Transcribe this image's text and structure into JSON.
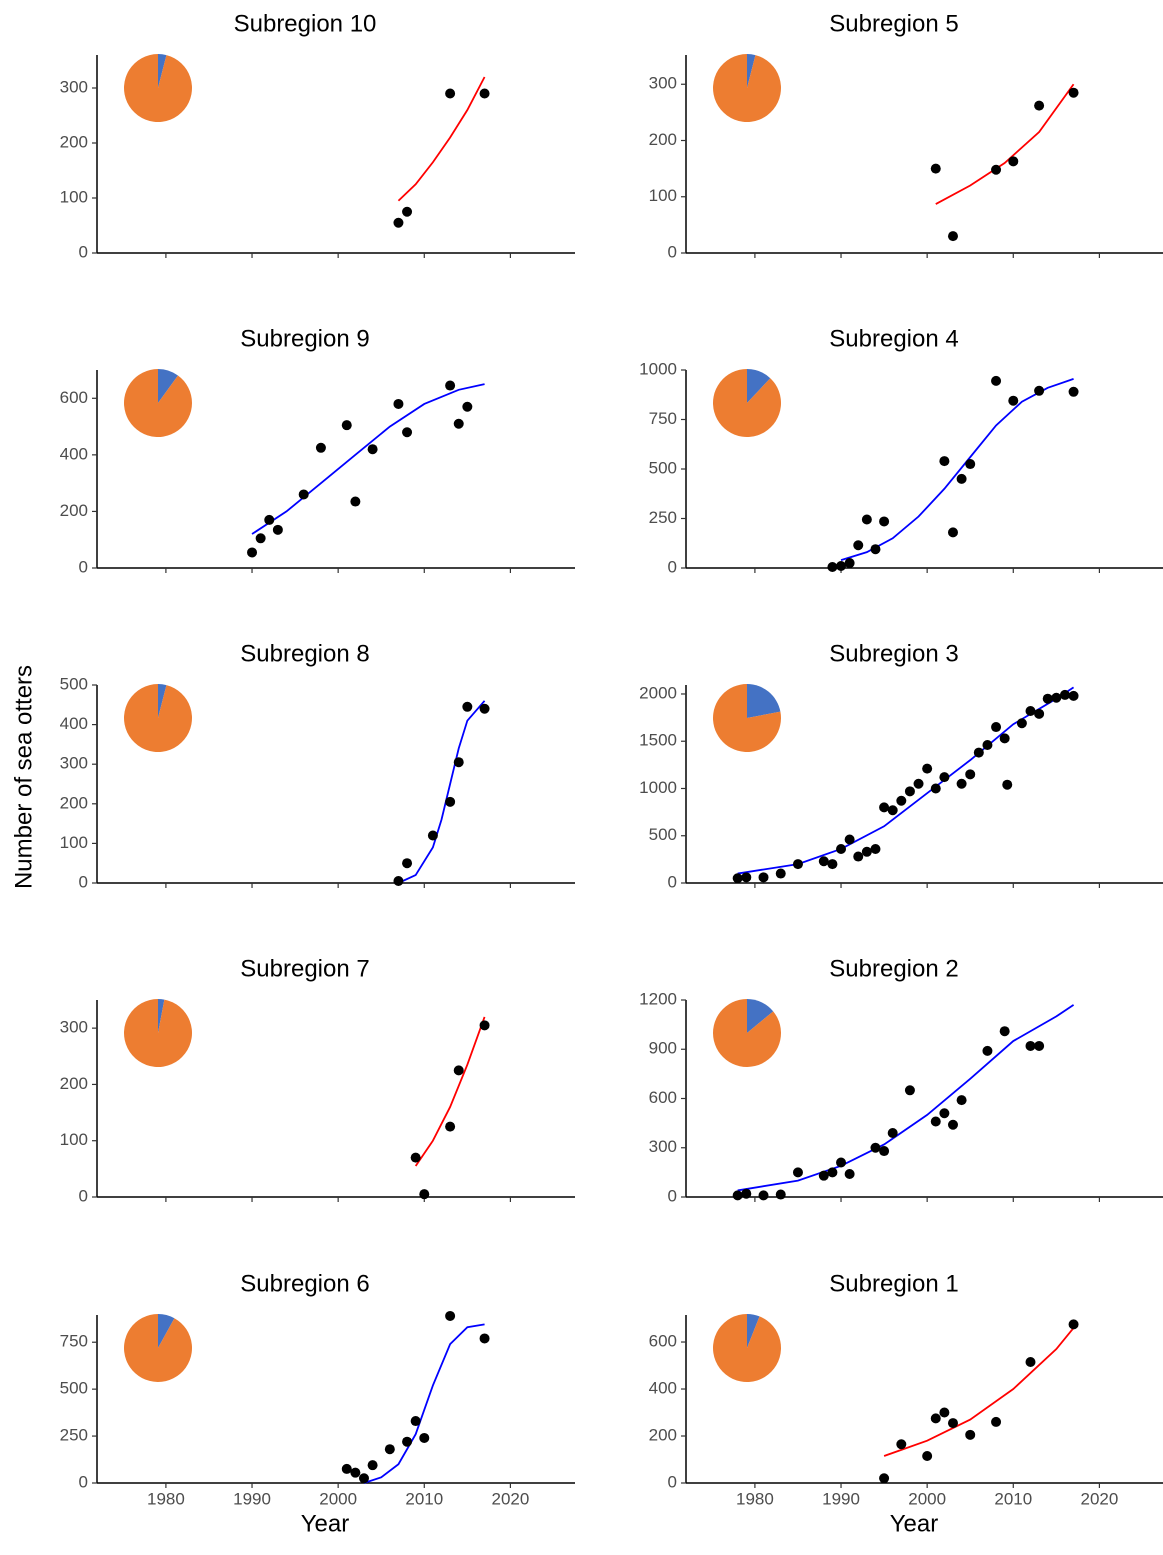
{
  "y_label": "Number of sea otters",
  "chart_data": [
    {
      "type": "scatter",
      "title": "Subregion 10",
      "color": "#000000",
      "x": [
        2007,
        2008,
        2013,
        2017
      ],
      "values": [
        55,
        75,
        290,
        290
      ],
      "fit": {
        "color": "#ff0000",
        "x": [
          2007,
          2009,
          2011,
          2013,
          2015,
          2017
        ],
        "values": [
          95,
          125,
          165,
          210,
          260,
          320
        ]
      },
      "pie": {
        "values": [
          4,
          96
        ],
        "colors": [
          "#4472c4",
          "#ed7d31"
        ]
      },
      "xlim": [
        1972,
        2027.5
      ],
      "xticks": [
        1980,
        1990,
        2000,
        2010,
        2020
      ],
      "xtick_labels": false,
      "ylim": [
        0,
        360
      ],
      "yticks": [
        0,
        100,
        200,
        300
      ]
    },
    {
      "type": "scatter",
      "title": "Subregion 9",
      "color": "#000000",
      "x": [
        1990,
        1991,
        1992,
        1993,
        1996,
        1998,
        2001,
        2002,
        2004,
        2007,
        2008,
        2013,
        2014,
        2015
      ],
      "values": [
        55,
        105,
        170,
        135,
        260,
        425,
        505,
        235,
        420,
        580,
        480,
        645,
        510,
        570
      ],
      "fit": {
        "color": "#0000ff",
        "x": [
          1990,
          1994,
          1998,
          2002,
          2006,
          2010,
          2014,
          2017
        ],
        "values": [
          120,
          200,
          300,
          400,
          500,
          580,
          630,
          650
        ]
      },
      "pie": {
        "values": [
          10,
          90
        ],
        "colors": [
          "#4472c4",
          "#ed7d31"
        ]
      },
      "xlim": [
        1972,
        2027.5
      ],
      "xticks": [
        1980,
        1990,
        2000,
        2010,
        2020
      ],
      "xtick_labels": false,
      "ylim": [
        0,
        700
      ],
      "yticks": [
        0,
        200,
        400,
        600
      ]
    },
    {
      "type": "scatter",
      "title": "Subregion 8",
      "color": "#000000",
      "x": [
        2007,
        2008,
        2011,
        2013,
        2014,
        2015,
        2017
      ],
      "values": [
        5,
        50,
        120,
        205,
        305,
        445,
        440
      ],
      "fit": {
        "color": "#0000ff",
        "x": [
          2007,
          2009,
          2011,
          2012,
          2013,
          2014,
          2015,
          2017
        ],
        "values": [
          0,
          20,
          90,
          160,
          250,
          340,
          410,
          460
        ]
      },
      "pie": {
        "values": [
          4,
          96
        ],
        "colors": [
          "#4472c4",
          "#ed7d31"
        ]
      },
      "xlim": [
        1972,
        2027.5
      ],
      "xticks": [
        1980,
        1990,
        2000,
        2010,
        2020
      ],
      "xtick_labels": false,
      "ylim": [
        0,
        500
      ],
      "yticks": [
        0,
        100,
        200,
        300,
        400,
        500
      ]
    },
    {
      "type": "scatter",
      "title": "Subregion 7",
      "color": "#000000",
      "x": [
        2009,
        2010,
        2013,
        2014,
        2017
      ],
      "values": [
        70,
        5,
        125,
        225,
        305
      ],
      "fit": {
        "color": "#ff0000",
        "x": [
          2009,
          2011,
          2013,
          2015,
          2017
        ],
        "values": [
          55,
          100,
          160,
          235,
          320
        ]
      },
      "pie": {
        "values": [
          3,
          97
        ],
        "colors": [
          "#4472c4",
          "#ed7d31"
        ]
      },
      "xlim": [
        1972,
        2027.5
      ],
      "xticks": [
        1980,
        1990,
        2000,
        2010,
        2020
      ],
      "xtick_labels": false,
      "ylim": [
        0,
        350
      ],
      "yticks": [
        0,
        100,
        200,
        300
      ]
    },
    {
      "type": "scatter",
      "title": "Subregion 6",
      "color": "#000000",
      "xlabel": "Year",
      "x": [
        2001,
        2002,
        2003,
        2004,
        2006,
        2008,
        2009,
        2010,
        2013,
        2017
      ],
      "values": [
        75,
        55,
        25,
        95,
        180,
        220,
        330,
        240,
        890,
        770
      ],
      "fit": {
        "color": "#0000ff",
        "x": [
          2003,
          2005,
          2007,
          2009,
          2011,
          2013,
          2015,
          2017
        ],
        "values": [
          0,
          30,
          100,
          260,
          520,
          740,
          830,
          845
        ]
      },
      "pie": {
        "values": [
          8,
          92
        ],
        "colors": [
          "#4472c4",
          "#ed7d31"
        ]
      },
      "xlim": [
        1972,
        2027.5
      ],
      "xticks": [
        1980,
        1990,
        2000,
        2010,
        2020
      ],
      "xtick_labels": true,
      "ylim": [
        0,
        895
      ],
      "yticks": [
        0,
        250,
        500,
        750
      ]
    },
    {
      "type": "scatter",
      "title": "Subregion 5",
      "color": "#000000",
      "x": [
        2001,
        2003,
        2008,
        2010,
        2013,
        2017
      ],
      "values": [
        150,
        30,
        148,
        163,
        262,
        285
      ],
      "fit": {
        "color": "#ff0000",
        "x": [
          2001,
          2005,
          2009,
          2013,
          2017
        ],
        "values": [
          87,
          120,
          160,
          215,
          300
        ]
      },
      "pie": {
        "values": [
          4,
          96
        ],
        "colors": [
          "#4472c4",
          "#ed7d31"
        ]
      },
      "xlim": [
        1972,
        2027.5
      ],
      "xticks": [
        1980,
        1990,
        2000,
        2010,
        2020
      ],
      "xtick_labels": false,
      "ylim": [
        0,
        352
      ],
      "yticks": [
        0,
        100,
        200,
        300
      ]
    },
    {
      "type": "scatter",
      "title": "Subregion 4",
      "color": "#000000",
      "x": [
        1989,
        1990,
        1991,
        1992,
        1993,
        1994,
        1995,
        2002,
        2003,
        2004,
        2005,
        2008,
        2010,
        2013,
        2017
      ],
      "values": [
        5,
        10,
        25,
        115,
        245,
        95,
        235,
        540,
        180,
        450,
        525,
        945,
        845,
        895,
        890
      ],
      "fit": {
        "color": "#0000ff",
        "x": [
          1990,
          1993,
          1996,
          1999,
          2002,
          2005,
          2008,
          2011,
          2014,
          2017
        ],
        "values": [
          40,
          80,
          150,
          260,
          400,
          560,
          720,
          840,
          910,
          955
        ]
      },
      "pie": {
        "values": [
          12,
          88
        ],
        "colors": [
          "#4472c4",
          "#ed7d31"
        ]
      },
      "xlim": [
        1972,
        2027.5
      ],
      "xticks": [
        1980,
        1990,
        2000,
        2010,
        2020
      ],
      "xtick_labels": false,
      "ylim": [
        0,
        1000
      ],
      "yticks": [
        0,
        250,
        500,
        750,
        1000
      ]
    },
    {
      "type": "scatter",
      "title": "Subregion 3",
      "color": "#000000",
      "x": [
        1978,
        1979,
        1981,
        1983,
        1985,
        1988,
        1989,
        1990,
        1991,
        1992,
        1993,
        1994,
        1995,
        1996,
        1997,
        1998,
        1999,
        2000,
        2001,
        2002,
        2004,
        2005,
        2006,
        2007,
        2008,
        2009,
        2009.3,
        2011,
        2012,
        2013,
        2014,
        2015,
        2016,
        2017
      ],
      "values": [
        50,
        60,
        60,
        100,
        200,
        230,
        200,
        360,
        460,
        280,
        330,
        360,
        800,
        770,
        870,
        970,
        1050,
        1210,
        1000,
        1120,
        1050,
        1150,
        1380,
        1460,
        1650,
        1530,
        1040,
        1690,
        1820,
        1790,
        1950,
        1960,
        1990,
        1980
      ],
      "fit": {
        "color": "#0000ff",
        "x": [
          1978,
          1985,
          1990,
          1995,
          2000,
          2005,
          2010,
          2015,
          2017
        ],
        "values": [
          100,
          200,
          360,
          600,
          950,
          1300,
          1680,
          1950,
          2070
        ]
      },
      "pie": {
        "values": [
          22,
          78
        ],
        "colors": [
          "#4472c4",
          "#ed7d31"
        ]
      },
      "xlim": [
        1972,
        2027.5
      ],
      "xticks": [
        1980,
        1990,
        2000,
        2010,
        2020
      ],
      "xtick_labels": false,
      "ylim": [
        0,
        2095
      ],
      "yticks": [
        0,
        500,
        1000,
        1500,
        2000
      ]
    },
    {
      "type": "scatter",
      "title": "Subregion 2",
      "color": "#000000",
      "x": [
        1978,
        1979,
        1981,
        1983,
        1985,
        1988,
        1989,
        1990,
        1991,
        1994,
        1995,
        1996,
        1998,
        2001,
        2002,
        2003,
        2004,
        2007,
        2009,
        2012,
        2013
      ],
      "values": [
        10,
        20,
        10,
        15,
        150,
        130,
        150,
        210,
        140,
        300,
        280,
        390,
        650,
        460,
        510,
        440,
        590,
        890,
        1010,
        920,
        920
      ],
      "fit": {
        "color": "#0000ff",
        "x": [
          1978,
          1985,
          1990,
          1995,
          2000,
          2005,
          2010,
          2015,
          2017
        ],
        "values": [
          40,
          100,
          190,
          320,
          500,
          720,
          950,
          1100,
          1170
        ]
      },
      "pie": {
        "values": [
          14,
          86
        ],
        "colors": [
          "#4472c4",
          "#ed7d31"
        ]
      },
      "xlim": [
        1972,
        2027.5
      ],
      "xticks": [
        1980,
        1990,
        2000,
        2010,
        2020
      ],
      "xtick_labels": false,
      "ylim": [
        0,
        1200
      ],
      "yticks": [
        0,
        300,
        600,
        900,
        1200
      ]
    },
    {
      "type": "scatter",
      "title": "Subregion 1",
      "color": "#000000",
      "xlabel": "Year",
      "x": [
        1995,
        1997,
        2000,
        2001,
        2002,
        2003,
        2005,
        2008,
        2012,
        2017
      ],
      "values": [
        20,
        165,
        115,
        275,
        300,
        255,
        205,
        260,
        515,
        675
      ],
      "fit": {
        "color": "#ff0000",
        "x": [
          1995,
          2000,
          2005,
          2010,
          2015,
          2017
        ],
        "values": [
          115,
          180,
          270,
          400,
          570,
          660
        ]
      },
      "pie": {
        "values": [
          6,
          94
        ],
        "colors": [
          "#4472c4",
          "#ed7d31"
        ]
      },
      "xlim": [
        1972,
        2027.5
      ],
      "xticks": [
        1980,
        1990,
        2000,
        2010,
        2020
      ],
      "xtick_labels": true,
      "ylim": [
        0,
        715
      ],
      "yticks": [
        0,
        200,
        400,
        600
      ]
    }
  ]
}
